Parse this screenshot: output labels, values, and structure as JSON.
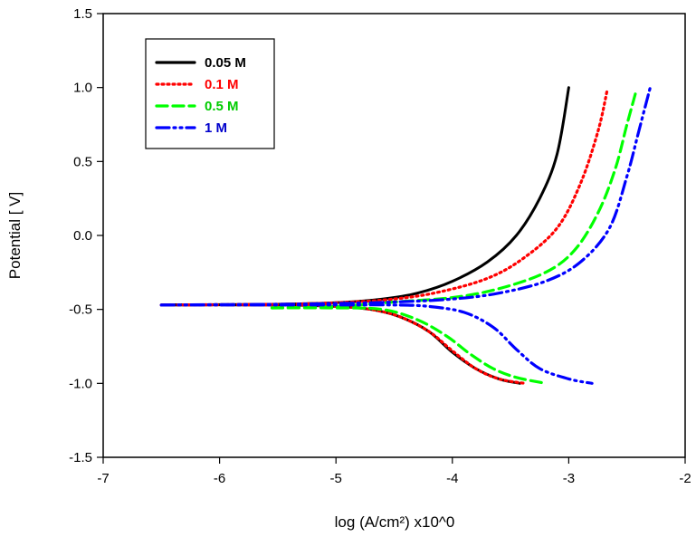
{
  "chart_data": {
    "type": "line",
    "title": "",
    "xlabel": "log (A/cm²) x10^0",
    "ylabel": "Potential [ V]",
    "xlim": [
      -7,
      -2
    ],
    "ylim": [
      -1.5,
      1.5
    ],
    "xticks": [
      -7,
      -6,
      -5,
      -4,
      -3,
      -2
    ],
    "xtick_labels": [
      "-7",
      "-6",
      "-5",
      "-4",
      "-3",
      "-2"
    ],
    "yticks": [
      -1.5,
      -1.0,
      -0.5,
      0.0,
      0.5,
      1.0,
      1.5
    ],
    "ytick_labels": [
      "-1.5",
      "-1.0",
      "-0.5",
      "0.0",
      "0.5",
      "1.0",
      "1.5"
    ],
    "grid": false,
    "legend_position": "top-left",
    "series": [
      {
        "name": "0.05 M",
        "color": "#000000",
        "style": "solid",
        "anodic": [
          [
            -6.5,
            -0.47
          ],
          [
            -5.5,
            -0.465
          ],
          [
            -5.0,
            -0.455
          ],
          [
            -4.6,
            -0.43
          ],
          [
            -4.3,
            -0.39
          ],
          [
            -4.0,
            -0.31
          ],
          [
            -3.7,
            -0.18
          ],
          [
            -3.45,
            0.0
          ],
          [
            -3.25,
            0.25
          ],
          [
            -3.1,
            0.55
          ],
          [
            -3.0,
            1.0
          ]
        ],
        "cathodic": [
          [
            -6.5,
            -0.47
          ],
          [
            -5.5,
            -0.47
          ],
          [
            -5.0,
            -0.48
          ],
          [
            -4.7,
            -0.5
          ],
          [
            -4.45,
            -0.55
          ],
          [
            -4.2,
            -0.65
          ],
          [
            -4.0,
            -0.79
          ],
          [
            -3.8,
            -0.9
          ],
          [
            -3.6,
            -0.97
          ],
          [
            -3.42,
            -1.0
          ]
        ]
      },
      {
        "name": "0.1 M",
        "color": "#ff0000",
        "style": "dotted",
        "anodic": [
          [
            -6.5,
            -0.47
          ],
          [
            -5.5,
            -0.465
          ],
          [
            -5.0,
            -0.455
          ],
          [
            -4.5,
            -0.43
          ],
          [
            -4.1,
            -0.38
          ],
          [
            -3.7,
            -0.29
          ],
          [
            -3.4,
            -0.16
          ],
          [
            -3.1,
            0.05
          ],
          [
            -2.9,
            0.35
          ],
          [
            -2.75,
            0.7
          ],
          [
            -2.67,
            0.98
          ]
        ],
        "cathodic": [
          [
            -6.5,
            -0.47
          ],
          [
            -5.5,
            -0.47
          ],
          [
            -5.0,
            -0.48
          ],
          [
            -4.7,
            -0.5
          ],
          [
            -4.45,
            -0.55
          ],
          [
            -4.2,
            -0.65
          ],
          [
            -4.0,
            -0.78
          ],
          [
            -3.8,
            -0.9
          ],
          [
            -3.6,
            -0.97
          ],
          [
            -3.38,
            -1.0
          ]
        ]
      },
      {
        "name": "0.5 M",
        "color": "#00ff00",
        "style": "dashed",
        "anodic": [
          [
            -5.55,
            -0.49
          ],
          [
            -5.0,
            -0.48
          ],
          [
            -4.5,
            -0.45
          ],
          [
            -4.0,
            -0.42
          ],
          [
            -3.6,
            -0.36
          ],
          [
            -3.2,
            -0.25
          ],
          [
            -2.95,
            -0.1
          ],
          [
            -2.75,
            0.15
          ],
          [
            -2.6,
            0.45
          ],
          [
            -2.5,
            0.75
          ],
          [
            -2.42,
            0.98
          ]
        ],
        "cathodic": [
          [
            -5.55,
            -0.49
          ],
          [
            -5.0,
            -0.49
          ],
          [
            -4.6,
            -0.5
          ],
          [
            -4.3,
            -0.57
          ],
          [
            -4.05,
            -0.68
          ],
          [
            -3.85,
            -0.8
          ],
          [
            -3.65,
            -0.9
          ],
          [
            -3.45,
            -0.96
          ],
          [
            -3.2,
            -1.0
          ]
        ]
      },
      {
        "name": "1 M",
        "color": "#0000ff",
        "style": "dash-dot-dot",
        "anodic": [
          [
            -6.5,
            -0.47
          ],
          [
            -5.5,
            -0.465
          ],
          [
            -5.0,
            -0.46
          ],
          [
            -4.5,
            -0.45
          ],
          [
            -4.0,
            -0.43
          ],
          [
            -3.6,
            -0.39
          ],
          [
            -3.2,
            -0.31
          ],
          [
            -2.9,
            -0.18
          ],
          [
            -2.65,
            0.05
          ],
          [
            -2.5,
            0.4
          ],
          [
            -2.4,
            0.7
          ],
          [
            -2.3,
            1.0
          ]
        ],
        "cathodic": [
          [
            -6.5,
            -0.47
          ],
          [
            -5.0,
            -0.47
          ],
          [
            -4.5,
            -0.47
          ],
          [
            -4.2,
            -0.48
          ],
          [
            -3.9,
            -0.52
          ],
          [
            -3.65,
            -0.62
          ],
          [
            -3.45,
            -0.77
          ],
          [
            -3.25,
            -0.9
          ],
          [
            -3.0,
            -0.97
          ],
          [
            -2.8,
            -1.0
          ]
        ]
      }
    ]
  }
}
